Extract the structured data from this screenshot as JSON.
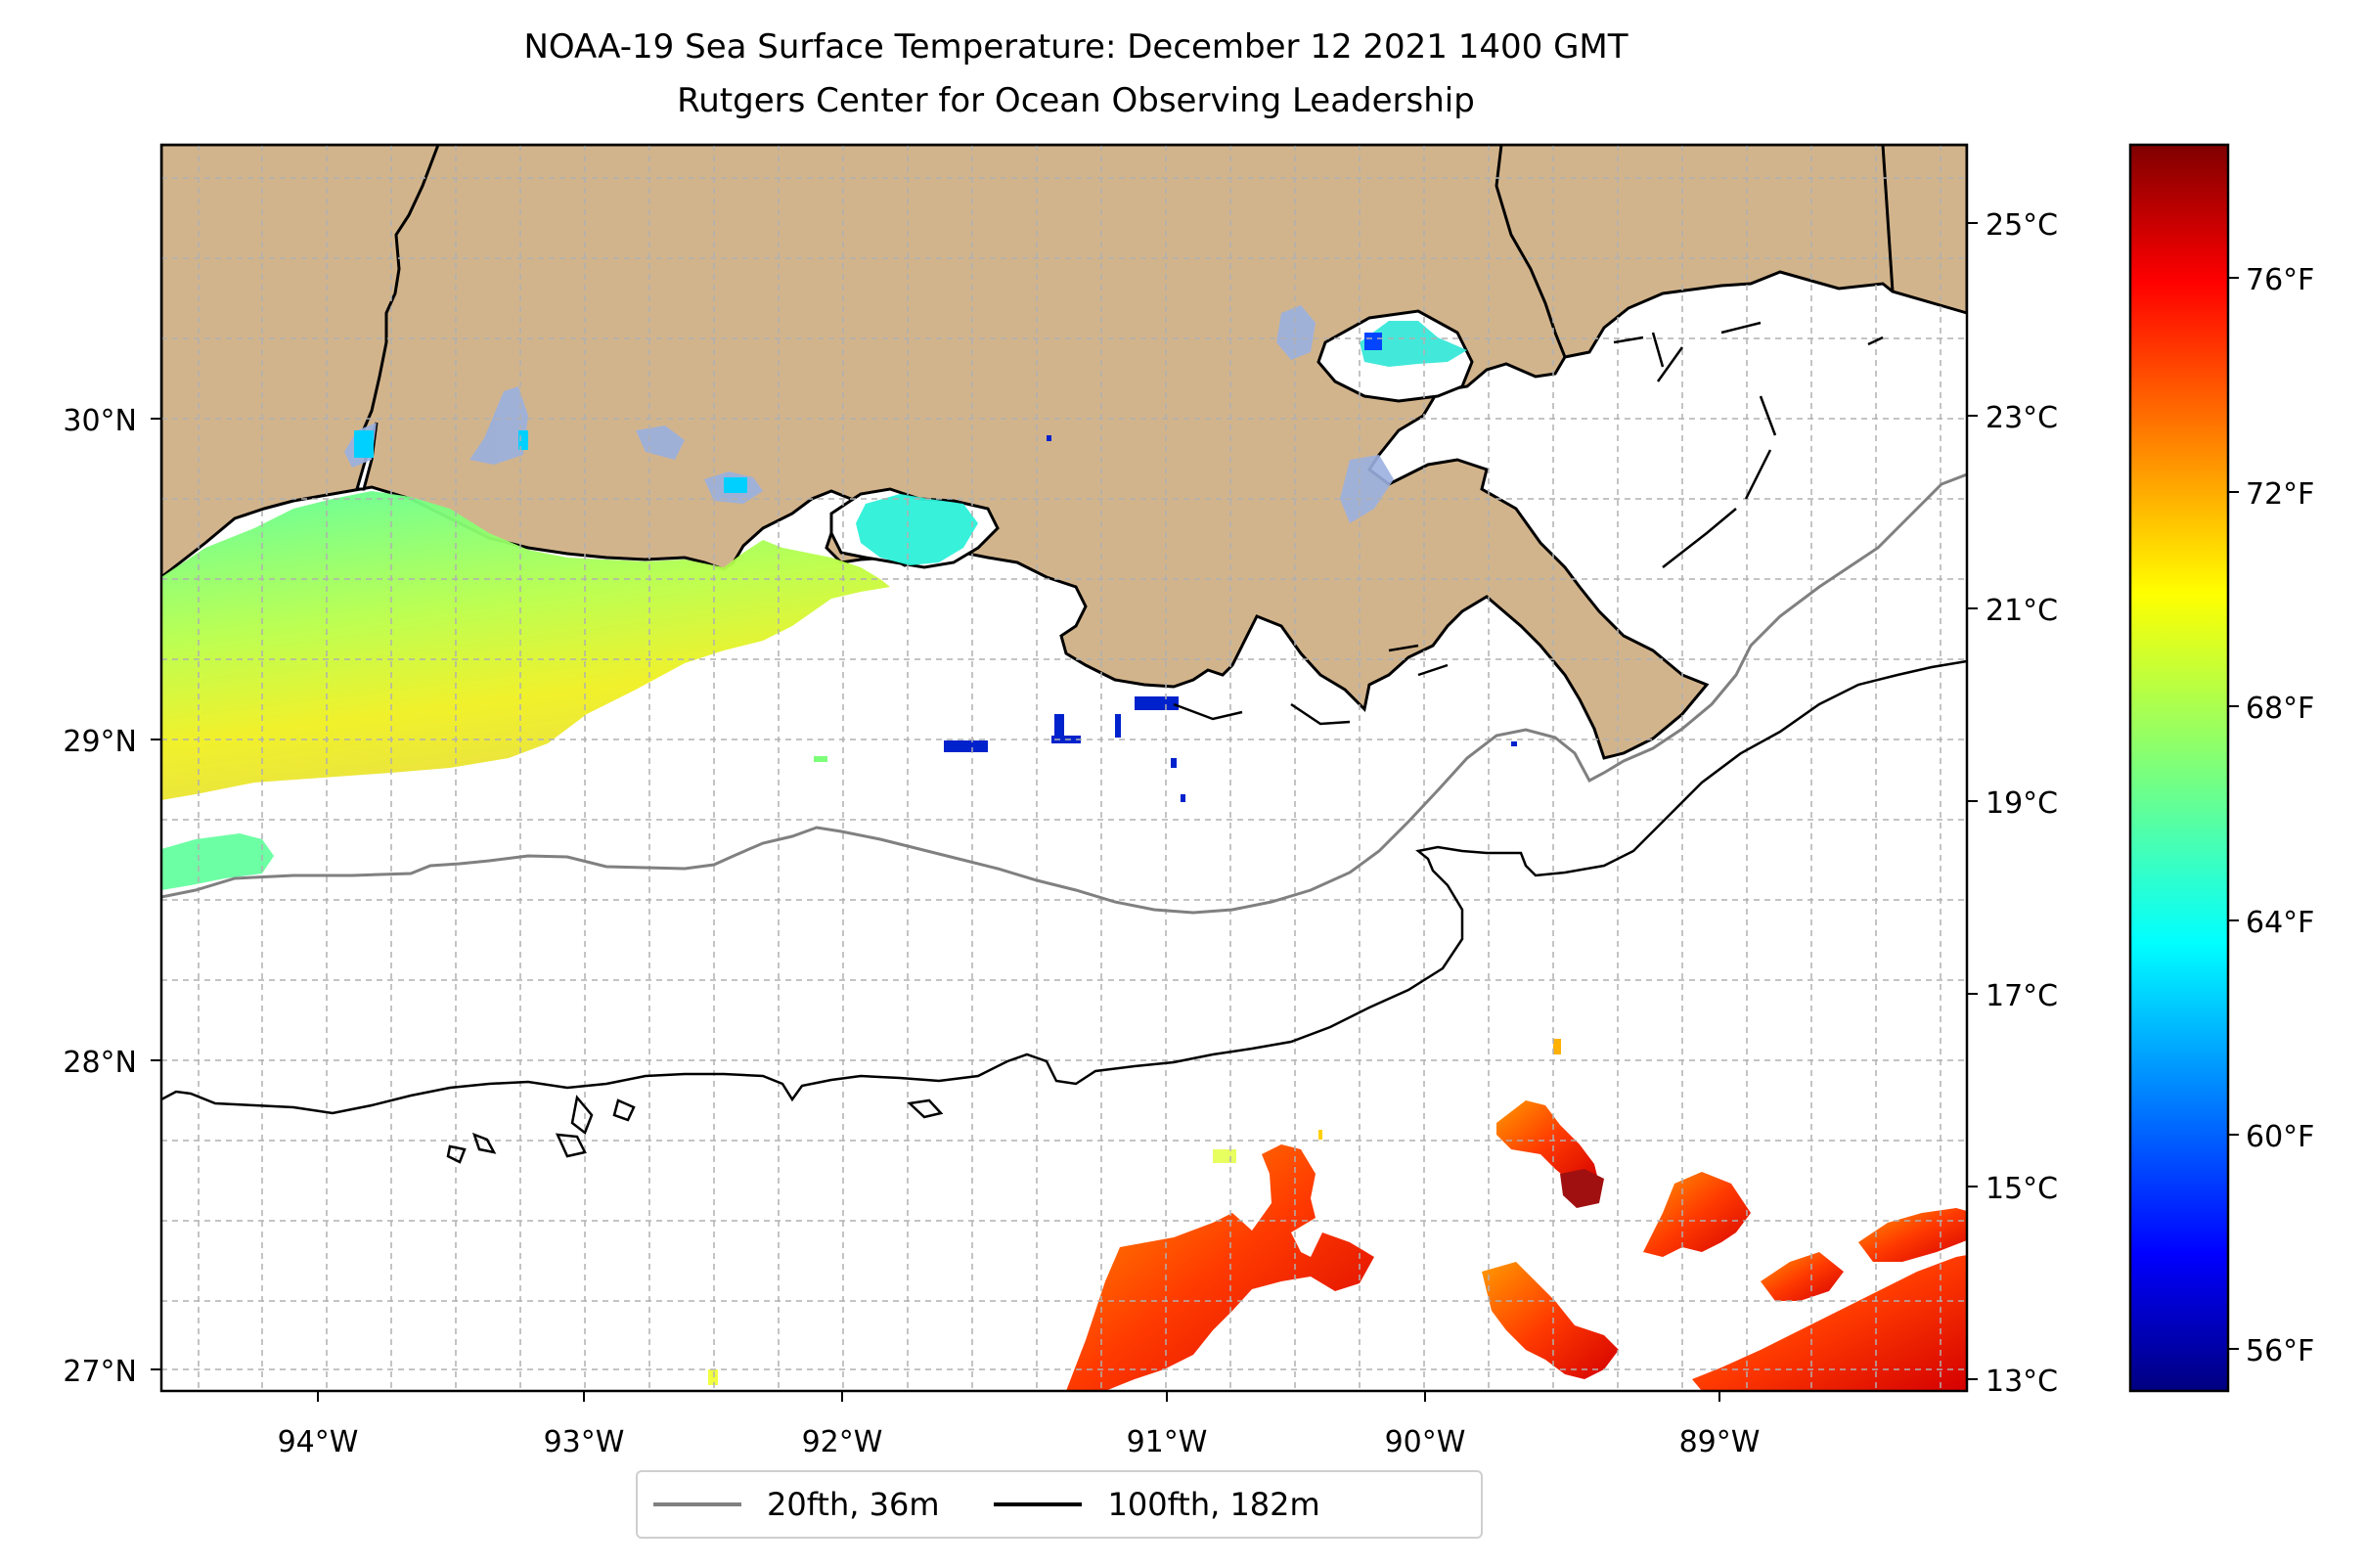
{
  "title": "NOAA-19 Sea Surface Temperature: December 12 2021 1400 GMT",
  "subtitle": "Rutgers Center for Ocean Observing Leadership",
  "map": {
    "lon_range": [
      -94.6,
      -88.2
    ],
    "lat_range": [
      26.95,
      30.85
    ],
    "lon_ticks": [
      "94°W",
      "93°W",
      "92°W",
      "91°W",
      "90°W",
      "89°W"
    ],
    "lat_ticks": [
      "30°N",
      "29°N",
      "28°N",
      "27°N"
    ],
    "land_color": "#d2b48c",
    "gridlines": true,
    "sst_patches": [
      {
        "region": "nearshore Texas/Louisiana coast",
        "approx_temp_f": [
          64,
          68
        ]
      },
      {
        "region": "south of 27.8°N, 91.3°W–88.2°W",
        "approx_temp_f": [
          72,
          78
        ]
      },
      {
        "region": "scattered cold pixels near 29°N, 91°W",
        "approx_temp_f": [
          56,
          60
        ]
      }
    ]
  },
  "colorbar": {
    "cmap": "jet",
    "celsius_ticks": [
      "25°C",
      "23°C",
      "21°C",
      "19°C",
      "17°C",
      "15°C",
      "13°C"
    ],
    "fahrenheit_ticks": [
      "76°F",
      "72°F",
      "68°F",
      "64°F",
      "60°F",
      "56°F"
    ]
  },
  "legend": {
    "placement": "bottom-center",
    "items": [
      {
        "label": "20fth, 36m",
        "color": "#808080"
      },
      {
        "label": "100fth, 182m",
        "color": "#000000"
      }
    ]
  }
}
